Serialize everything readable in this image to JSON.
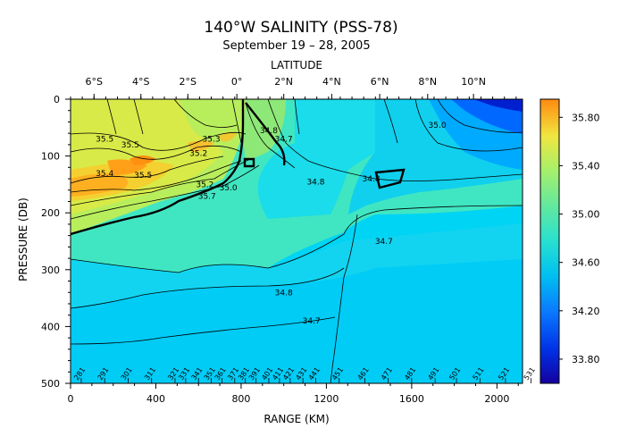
{
  "chart_data": {
    "type": "heatmap",
    "title": "140°W SALINITY (PSS-78)",
    "subtitle": "September 19 – 28, 2005",
    "xlabel": "RANGE (KM)",
    "ylabel": "PRESSURE (DB)",
    "top_axis_label": "LATITUDE",
    "xlim": [
      0,
      2120
    ],
    "ylim": [
      500,
      0
    ],
    "x_ticks": [
      0,
      400,
      800,
      1200,
      1600,
      2000
    ],
    "x_tick_labels": [
      "0",
      "400",
      "800",
      "1200",
      "1600",
      "2000"
    ],
    "y_ticks": [
      0,
      100,
      200,
      300,
      400,
      500
    ],
    "y_tick_labels": [
      "0",
      "100",
      "200",
      "300",
      "400",
      "500"
    ],
    "latitude_ticks": [
      {
        "label": "6°S",
        "range_km": 110
      },
      {
        "label": "4°S",
        "range_km": 330
      },
      {
        "label": "2°S",
        "range_km": 550
      },
      {
        "label": "0°",
        "range_km": 780
      },
      {
        "label": "2°N",
        "range_km": 1000
      },
      {
        "label": "4°N",
        "range_km": 1225
      },
      {
        "label": "6°N",
        "range_km": 1450
      },
      {
        "label": "8°N",
        "range_km": 1675
      },
      {
        "label": "10°N",
        "range_km": 1890
      }
    ],
    "colorbar": {
      "min": 33.6,
      "max": 35.95,
      "tick_values": [
        33.8,
        34.2,
        34.6,
        35.0,
        35.4,
        35.8
      ],
      "tick_labels": [
        "33.80",
        "34.20",
        "34.60",
        "35.00",
        "35.40",
        "35.80"
      ]
    },
    "grid": false,
    "contour_labels": [
      {
        "text": "35.5",
        "x": 160,
        "y": 75
      },
      {
        "text": "35.5",
        "x": 280,
        "y": 85
      },
      {
        "text": "35.5",
        "x": 340,
        "y": 138
      },
      {
        "text": "35.3",
        "x": 660,
        "y": 75
      },
      {
        "text": "35.2",
        "x": 600,
        "y": 100
      },
      {
        "text": "35.4",
        "x": 160,
        "y": 135
      },
      {
        "text": "35.2",
        "x": 630,
        "y": 155
      },
      {
        "text": "35.7",
        "x": 640,
        "y": 175
      },
      {
        "text": "35.0",
        "x": 740,
        "y": 160
      },
      {
        "text": "34.8",
        "x": 930,
        "y": 60
      },
      {
        "text": "34.7",
        "x": 1000,
        "y": 75
      },
      {
        "text": "34.8",
        "x": 1150,
        "y": 150
      },
      {
        "text": "34.8",
        "x": 1410,
        "y": 145
      },
      {
        "text": "35.0",
        "x": 1720,
        "y": 50
      },
      {
        "text": "34.7",
        "x": 1470,
        "y": 255
      },
      {
        "text": "34.8",
        "x": 1000,
        "y": 345
      },
      {
        "text": "34.7",
        "x": 1130,
        "y": 395
      }
    ],
    "station_labels": [
      {
        "text": "281",
        "x": 50
      },
      {
        "text": "291",
        "x": 160
      },
      {
        "text": "301",
        "x": 270
      },
      {
        "text": "311",
        "x": 380
      },
      {
        "text": "321",
        "x": 490
      },
      {
        "text": "331",
        "x": 540
      },
      {
        "text": "341",
        "x": 600
      },
      {
        "text": "351",
        "x": 660
      },
      {
        "text": "361",
        "x": 710
      },
      {
        "text": "371",
        "x": 770
      },
      {
        "text": "381",
        "x": 820
      },
      {
        "text": "391",
        "x": 870
      },
      {
        "text": "401",
        "x": 930
      },
      {
        "text": "411",
        "x": 980
      },
      {
        "text": "421",
        "x": 1030
      },
      {
        "text": "431",
        "x": 1090
      },
      {
        "text": "441",
        "x": 1150
      },
      {
        "text": "451",
        "x": 1260
      },
      {
        "text": "461",
        "x": 1380
      },
      {
        "text": "471",
        "x": 1490
      },
      {
        "text": "481",
        "x": 1600
      },
      {
        "text": "491",
        "x": 1710
      },
      {
        "text": "501",
        "x": 1810
      },
      {
        "text": "511",
        "x": 1920
      },
      {
        "text": "521",
        "x": 2040
      },
      {
        "text": "531",
        "x": 2160
      }
    ],
    "field_description": "salinity section: high (35.4–35.9) south of equator 100–200 dbar, low (<34.0) north of 9°N near surface, 34.6–34.8 at depth"
  }
}
